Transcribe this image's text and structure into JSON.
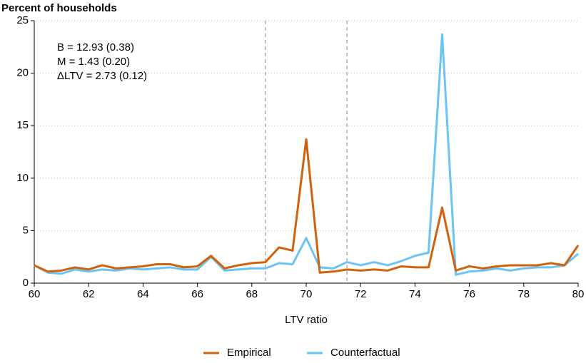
{
  "chart_data": {
    "type": "line",
    "title": "Percent of households",
    "xlabel": "LTV ratio",
    "annotations": [
      "B = 12.93 (0.38)",
      "M = 1.43 (0.20)",
      "ΔLTV = 2.73 (0.12)"
    ],
    "x": [
      60,
      60.5,
      61,
      61.5,
      62,
      62.5,
      63,
      63.5,
      64,
      64.5,
      65,
      65.5,
      66,
      66.5,
      67,
      67.5,
      68,
      68.5,
      69,
      69.5,
      70,
      70.5,
      71,
      71.5,
      72,
      72.5,
      73,
      73.5,
      74,
      74.5,
      75,
      75.5,
      76,
      76.5,
      77,
      77.5,
      78,
      78.5,
      79,
      79.5,
      80
    ],
    "series": [
      {
        "name": "Empirical",
        "color": "#d0620e",
        "values": [
          1.7,
          1.1,
          1.2,
          1.5,
          1.3,
          1.7,
          1.4,
          1.5,
          1.6,
          1.8,
          1.8,
          1.5,
          1.6,
          2.6,
          1.4,
          1.7,
          1.9,
          2.0,
          3.4,
          3.1,
          13.7,
          1.0,
          1.1,
          1.3,
          1.2,
          1.3,
          1.2,
          1.6,
          1.5,
          1.5,
          7.2,
          1.2,
          1.6,
          1.4,
          1.6,
          1.7,
          1.7,
          1.7,
          1.9,
          1.7,
          3.6
        ]
      },
      {
        "name": "Counterfactual",
        "color": "#6cc4f2",
        "values": [
          1.7,
          1.0,
          0.9,
          1.3,
          1.1,
          1.3,
          1.2,
          1.4,
          1.3,
          1.4,
          1.5,
          1.3,
          1.3,
          2.5,
          1.2,
          1.3,
          1.4,
          1.4,
          1.9,
          1.8,
          4.3,
          1.5,
          1.4,
          2.0,
          1.7,
          2.0,
          1.7,
          2.1,
          2.6,
          2.9,
          23.7,
          0.8,
          1.1,
          1.2,
          1.4,
          1.2,
          1.4,
          1.5,
          1.5,
          1.7,
          2.8
        ]
      }
    ],
    "xlim": [
      60,
      80
    ],
    "xticks": [
      60,
      62,
      64,
      66,
      68,
      70,
      72,
      74,
      76,
      78,
      80
    ],
    "ylim": [
      0,
      25
    ],
    "yticks": [
      0,
      5,
      10,
      15,
      20,
      25
    ],
    "vlines": [
      68.5,
      71.5
    ],
    "grid": true
  }
}
